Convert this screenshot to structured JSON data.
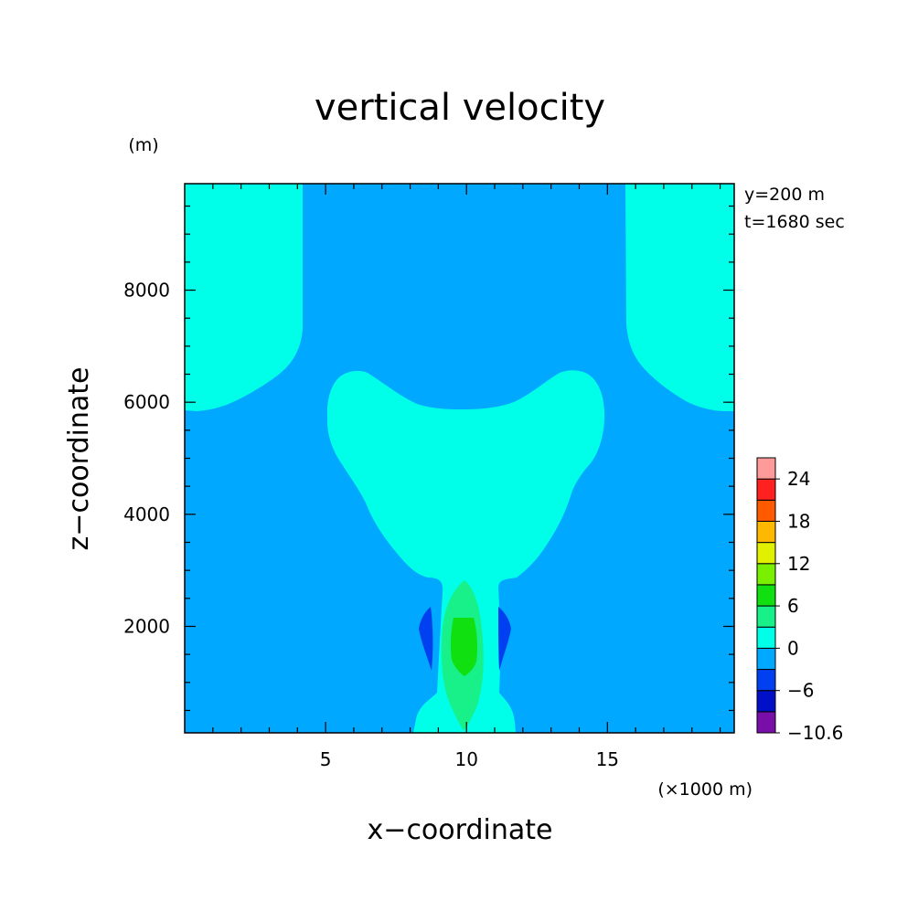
{
  "chart_data": {
    "type": "heatmap",
    "title": "vertical velocity",
    "xlabel": "x−coordinate",
    "ylabel": "z−coordinate",
    "x_unit": "(×1000 m)",
    "y_unit": "(m)",
    "annotations": [
      "y=200 m",
      "t=1680 sec"
    ],
    "xlim": [
      0,
      19.5
    ],
    "ylim": [
      100,
      9900
    ],
    "x_ticks": [
      5,
      10,
      15
    ],
    "x_tick_labels": [
      "5",
      "10",
      "15"
    ],
    "y_ticks": [
      2000,
      4000,
      6000,
      8000
    ],
    "y_tick_labels": [
      "2000",
      "4000",
      "6000",
      "8000"
    ],
    "colorbar": {
      "levels": [
        -10.6,
        -9,
        -6,
        -3,
        0,
        3,
        6,
        9,
        12,
        15,
        18,
        21,
        24,
        27
      ],
      "tick_labels": [
        "24",
        "18",
        "12",
        "6",
        "0",
        "−6",
        "−10.6"
      ],
      "colors": [
        "#7a0ea8",
        "#0010c8",
        "#0040f0",
        "#00a8ff",
        "#00ffe8",
        "#18f08a",
        "#10e010",
        "#78f000",
        "#e0f000",
        "#ffb800",
        "#ff5a00",
        "#ff2020",
        "#ff9a9a"
      ]
    },
    "background_value_range": [
      -3,
      0
    ],
    "regions": [
      {
        "level_range": [
          0,
          3
        ],
        "description_x": [
          0,
          4.3
        ],
        "z_top": 9900,
        "z_bottom": 5850
      },
      {
        "level_range": [
          0,
          3
        ],
        "description_x": [
          15.8,
          19.5
        ],
        "z_top": 9900,
        "z_bottom": 5850
      },
      {
        "level_range": [
          0,
          3
        ],
        "description_x": [
          5.1,
          14.9
        ],
        "z_top": 6600,
        "z_bottom": 100
      },
      {
        "level_range": [
          3,
          6
        ],
        "description_x": [
          9.4,
          11.1
        ],
        "z_top": 2800,
        "z_bottom": 200
      },
      {
        "level_range": [
          6,
          9
        ],
        "description_x": [
          9.6,
          10.6
        ],
        "z_top": 2200,
        "z_bottom": 1100
      },
      {
        "level_range": [
          -6,
          -3
        ],
        "description_x": [
          8.4,
          8.9
        ],
        "z_top": 2300,
        "z_bottom": 1200
      },
      {
        "level_range": [
          -6,
          -3
        ],
        "description_x": [
          11.2,
          11.7
        ],
        "z_top": 2300,
        "z_bottom": 1200
      }
    ]
  }
}
